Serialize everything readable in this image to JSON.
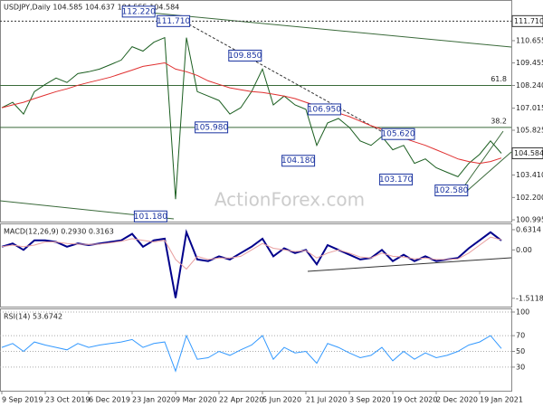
{
  "chart_data": [
    {
      "type": "line",
      "title": "USDJPY,Daily  104.585 104.637 104.555 104.584",
      "watermark": "ActionForex.com",
      "categories": [
        "9 Sep 2019",
        null,
        null,
        null,
        "23 Oct 2019",
        null,
        null,
        null,
        "6 Dec 2019",
        null,
        null,
        null,
        "23 Jan 2020",
        null,
        null,
        null,
        "9 Mar 2020",
        null,
        null,
        null,
        "22 Apr 2020",
        null,
        null,
        null,
        "5 Jun 2020",
        null,
        null,
        null,
        "21 Jul 2020",
        null,
        null,
        null,
        "3 Sep 2020",
        null,
        null,
        null,
        "19 Oct 2020",
        null,
        null,
        null,
        "2 Dec 2020",
        null,
        null,
        null,
        "19 Jan 2021",
        null,
        null
      ],
      "series": [
        {
          "color": "#1b5e20",
          "values": [
            107.04,
            107.33,
            106.7,
            107.91,
            108.3,
            108.64,
            108.4,
            108.88,
            108.98,
            109.12,
            109.36,
            109.61,
            110.33,
            110.09,
            110.57,
            110.82,
            102.11,
            110.82,
            107.91,
            107.67,
            107.43,
            106.7,
            107.04,
            107.91,
            109.12,
            107.19,
            107.67,
            107.19,
            106.95,
            105.01,
            106.22,
            106.46,
            105.98,
            105.25,
            105.01,
            105.49,
            104.77,
            105.01,
            104.04,
            104.28,
            103.8,
            103.56,
            103.32,
            104.04,
            104.53,
            105.25,
            104.584
          ]
        },
        {
          "color": "#e03030",
          "values": [
            107.04,
            107.19,
            107.33,
            107.53,
            107.72,
            107.91,
            108.06,
            108.25,
            108.4,
            108.54,
            108.69,
            108.88,
            109.07,
            109.27,
            109.36,
            109.46,
            109.12,
            108.98,
            108.78,
            108.49,
            108.3,
            108.11,
            108.01,
            107.91,
            107.86,
            107.77,
            107.67,
            107.53,
            107.33,
            107.14,
            106.95,
            106.75,
            106.56,
            106.32,
            106.07,
            105.88,
            105.64,
            105.4,
            105.2,
            105.01,
            104.77,
            104.53,
            104.28,
            104.14,
            104.04,
            104.14,
            104.33
          ]
        }
      ],
      "ylim": [
        100.9,
        112.75
      ],
      "yticks": [
        {
          "value": 100.995,
          "label": "100.995"
        },
        {
          "value": 102.2,
          "label": "102.200"
        },
        {
          "value": 103.41,
          "label": "103.410"
        },
        105.825,
        107.015,
        {
          "value": 108.24,
          "label": "108.240"
        },
        109.455,
        110.655
      ],
      "last": 104.584,
      "levels": [
        {
          "value": 111.71,
          "label": "111.710",
          "style": "dotted",
          "place": "axis"
        },
        {
          "value": 108.24,
          "label": "61.8",
          "style": "solid",
          "place": "inside"
        },
        {
          "value": 105.98,
          "label": "38.2",
          "style": "solid",
          "place": "inside"
        }
      ],
      "annotations": [
        {
          "x": 12.6,
          "value": 112.22,
          "label": "112.220"
        },
        {
          "x": 15.8,
          "value": 111.71,
          "label": "111.710"
        },
        {
          "x": 22.4,
          "value": 109.85,
          "label": "109.850"
        },
        {
          "x": 19.3,
          "value": 105.98,
          "label": "105.980"
        },
        {
          "x": 29.7,
          "value": 106.95,
          "label": "106.950"
        },
        {
          "x": 27.3,
          "value": 104.18,
          "label": "104.180"
        },
        {
          "x": 36.5,
          "value": 105.62,
          "label": "105.620"
        },
        {
          "x": 36.3,
          "value": 103.17,
          "label": "103.170"
        },
        {
          "x": 41.4,
          "value": 102.58,
          "label": "102.580"
        },
        {
          "x": 13.7,
          "value": 101.18,
          "label": "101.180"
        }
      ]
    },
    {
      "type": "line",
      "title": "MACD(12,26,9) 0.2930 0.3163",
      "series": [
        {
          "color": "#00008b",
          "values": [
            0.1,
            0.2,
            0.0,
            0.3,
            0.3,
            0.25,
            0.1,
            0.2,
            0.15,
            0.2,
            0.25,
            0.3,
            0.5,
            0.1,
            0.3,
            0.35,
            -1.5,
            0.55,
            -0.3,
            -0.35,
            -0.2,
            -0.3,
            -0.1,
            0.1,
            0.35,
            -0.2,
            0.05,
            -0.1,
            0.0,
            -0.45,
            0.15,
            0.0,
            -0.15,
            -0.3,
            -0.25,
            0.0,
            -0.35,
            -0.15,
            -0.35,
            -0.2,
            -0.35,
            -0.3,
            -0.25,
            0.05,
            0.3,
            0.55,
            0.293
          ]
        },
        {
          "color": "#e8a0a0",
          "values": [
            0.1,
            0.15,
            0.1,
            0.15,
            0.25,
            0.25,
            0.2,
            0.18,
            0.17,
            0.18,
            0.22,
            0.27,
            0.35,
            0.3,
            0.25,
            0.3,
            -0.3,
            -0.6,
            -0.2,
            -0.3,
            -0.25,
            -0.25,
            -0.2,
            0.0,
            0.2,
            0.05,
            0.0,
            -0.05,
            -0.02,
            -0.25,
            -0.1,
            0.0,
            -0.1,
            -0.22,
            -0.25,
            -0.1,
            -0.2,
            -0.22,
            -0.28,
            -0.25,
            -0.3,
            -0.3,
            -0.28,
            -0.1,
            0.15,
            0.4,
            0.3163
          ]
        }
      ],
      "ylim": [
        -1.8,
        0.8
      ],
      "yticks": [
        -1.5118,
        {
          "value": 0,
          "label": "0.00"
        },
        0.6314
      ]
    },
    {
      "type": "line",
      "title": "RSI(14) 53.6742",
      "series": [
        {
          "color": "#3399ff",
          "values": [
            55,
            60,
            50,
            62,
            58,
            55,
            52,
            60,
            55,
            58,
            60,
            62,
            65,
            55,
            60,
            62,
            25,
            70,
            40,
            42,
            50,
            45,
            52,
            58,
            70,
            40,
            55,
            48,
            50,
            35,
            60,
            55,
            48,
            42,
            45,
            55,
            38,
            50,
            40,
            48,
            42,
            45,
            50,
            58,
            62,
            70,
            53.6742
          ]
        }
      ],
      "ylim": [
        0,
        100
      ],
      "yticks": [
        30,
        50,
        70,
        100
      ],
      "grid": true
    }
  ]
}
